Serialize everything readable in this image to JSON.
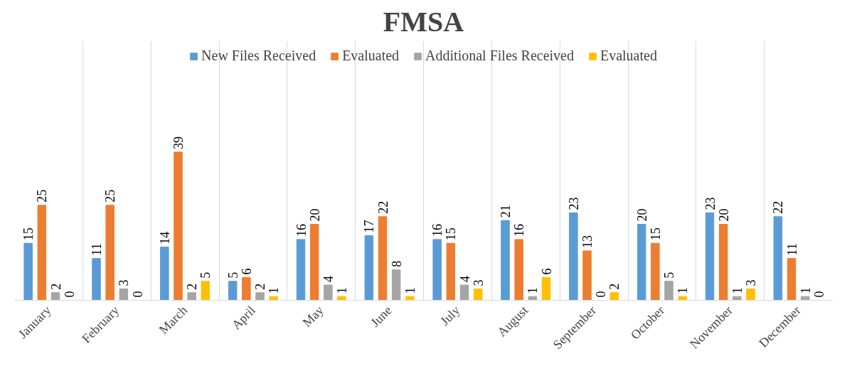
{
  "chart_data": {
    "type": "bar",
    "title": "FMSA",
    "categories": [
      "January",
      "February",
      "March",
      "April",
      "May",
      "June",
      "July",
      "August",
      "September",
      "October",
      "November",
      "December"
    ],
    "series": [
      {
        "name": "New Files Received",
        "color": "#5b9bd5",
        "values": [
          15,
          11,
          14,
          5,
          16,
          17,
          16,
          21,
          23,
          20,
          23,
          22
        ]
      },
      {
        "name": "Evaluated",
        "color": "#ed7d31",
        "values": [
          25,
          25,
          39,
          6,
          20,
          22,
          15,
          16,
          13,
          15,
          20,
          11
        ]
      },
      {
        "name": "Additional Files Received",
        "color": "#a5a5a5",
        "values": [
          2,
          3,
          2,
          2,
          4,
          8,
          4,
          1,
          0,
          5,
          1,
          1
        ]
      },
      {
        "name": "Evaluated",
        "color": "#ffc000",
        "values": [
          0,
          0,
          5,
          1,
          1,
          1,
          3,
          6,
          2,
          1,
          3,
          0
        ]
      }
    ],
    "data_labels": true,
    "grid": "x",
    "legend": "top"
  }
}
